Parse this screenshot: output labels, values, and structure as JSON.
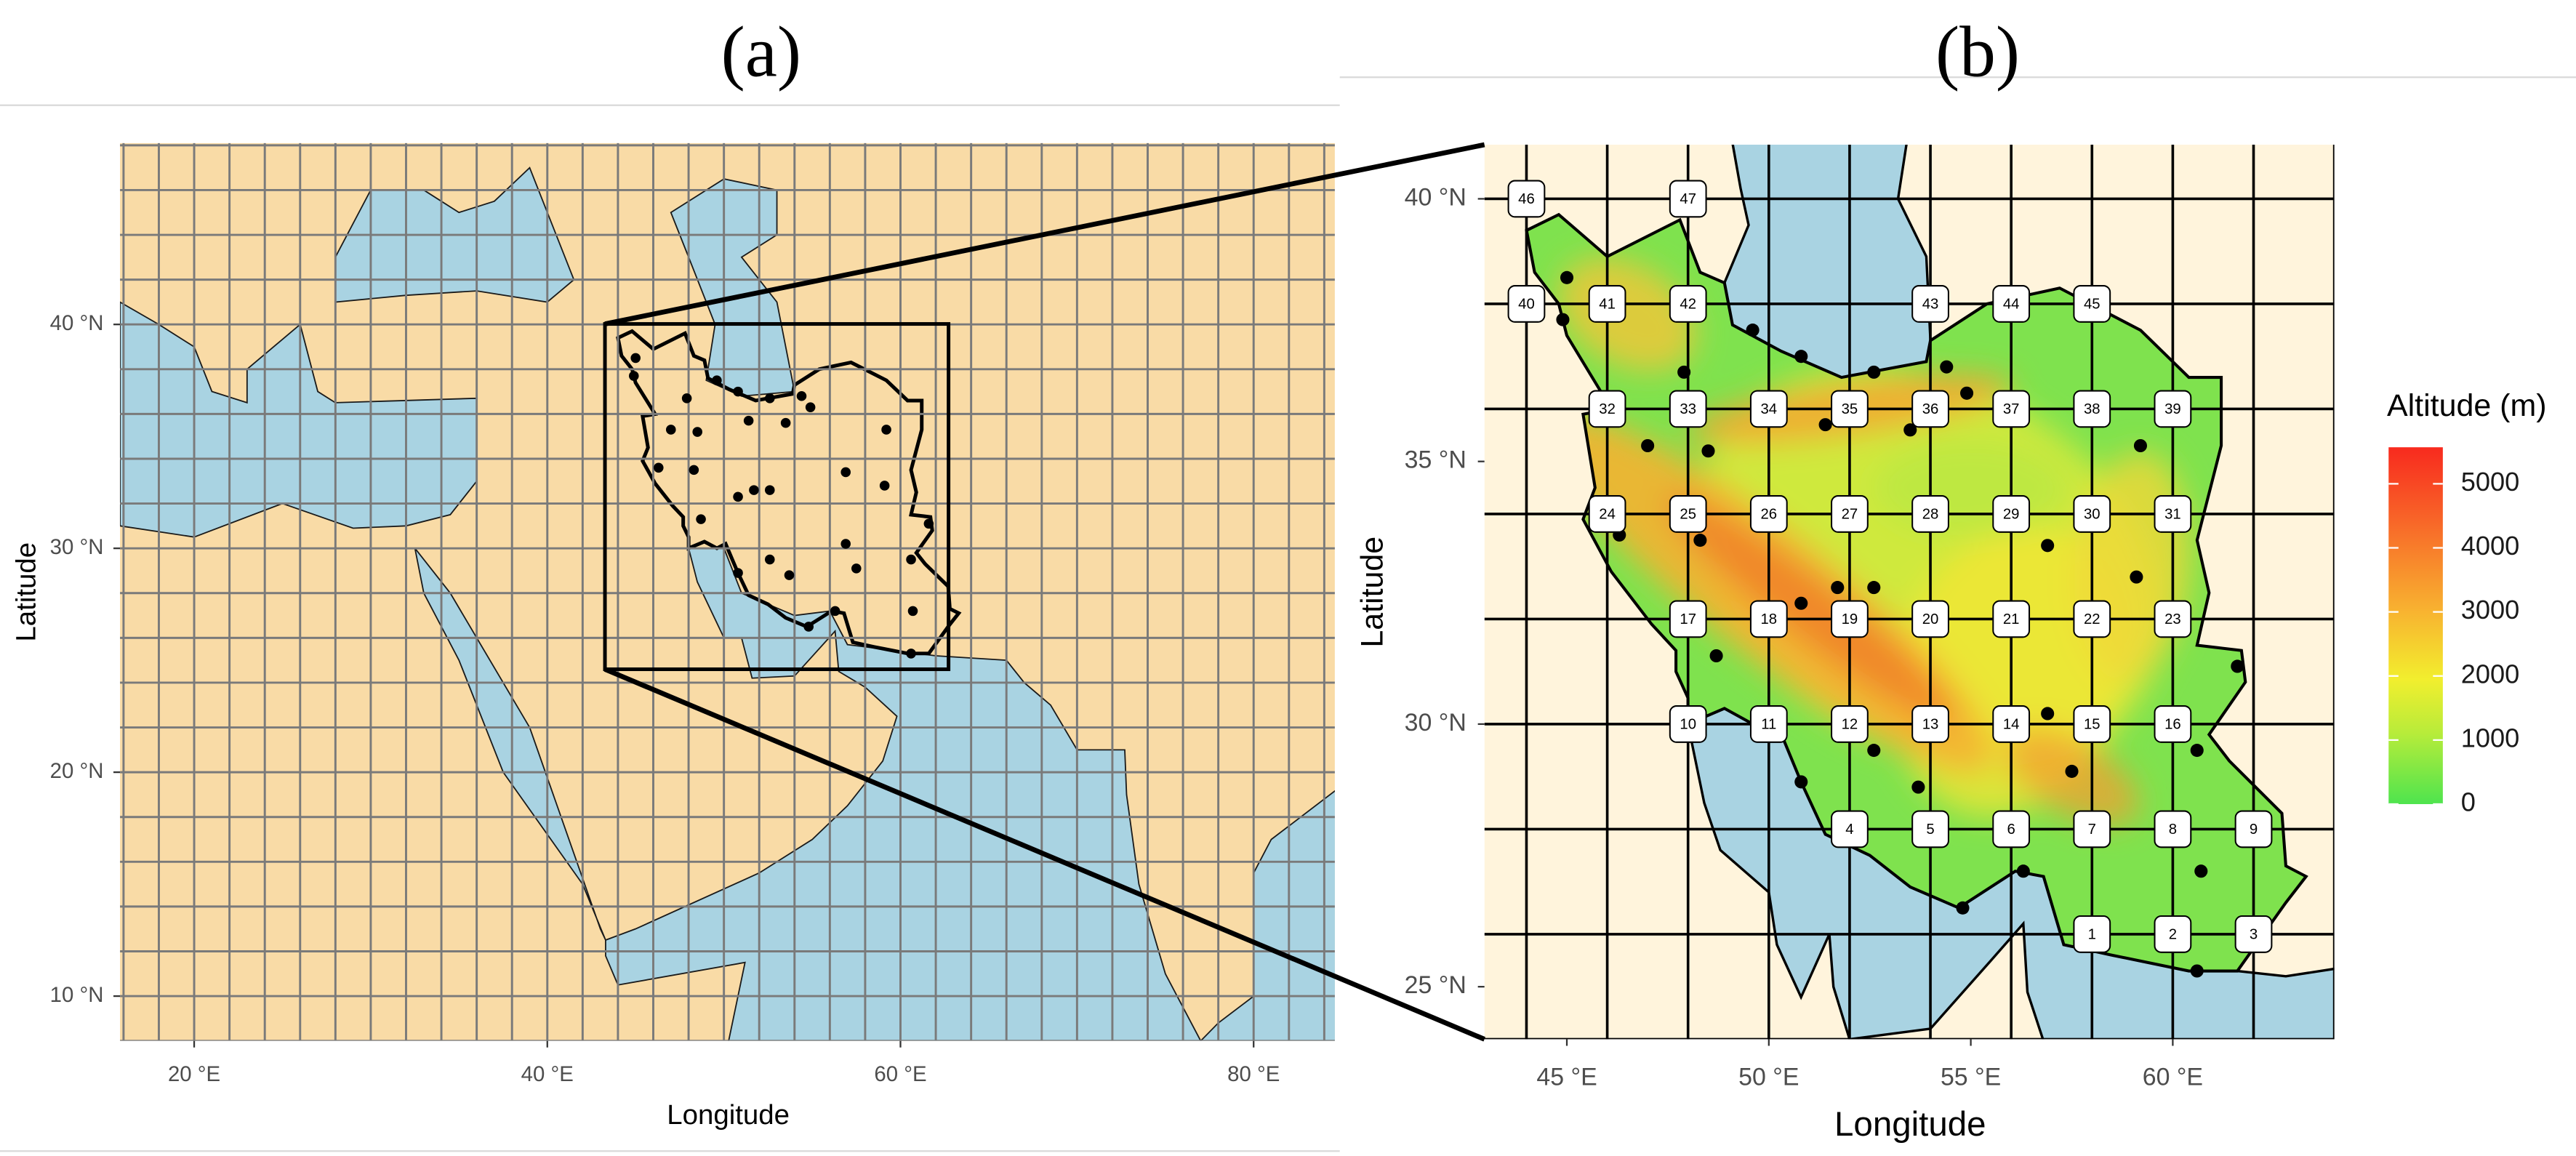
{
  "panels": [
    {
      "label": "(a)",
      "x_label": "Longitude",
      "y_label": "Latitude",
      "xlim": [
        15.8,
        84.6
      ],
      "ylim": [
        8.0,
        48.1
      ],
      "xticks": [
        {
          "value": 20,
          "label": "20 °E"
        },
        {
          "value": 40,
          "label": "40 °E"
        },
        {
          "value": 60,
          "label": "60 °E"
        },
        {
          "value": 80,
          "label": "80 °E"
        }
      ],
      "yticks": [
        {
          "value": 10,
          "label": "10 °N"
        },
        {
          "value": 20,
          "label": "20 °N"
        },
        {
          "value": 30,
          "label": "30 °N"
        },
        {
          "value": 40,
          "label": "40 °N"
        }
      ]
    },
    {
      "label": "(b)",
      "x_label": "Longitude",
      "y_label": "Latitude",
      "xlim": [
        42.96,
        64.0
      ],
      "ylim": [
        24.0,
        41.03
      ],
      "xticks": [
        {
          "value": 45,
          "label": "45 °E"
        },
        {
          "value": 50,
          "label": "50 °E"
        },
        {
          "value": 55,
          "label": "55 °E"
        },
        {
          "value": 60,
          "label": "60 °E"
        }
      ],
      "yticks": [
        {
          "value": 25,
          "label": "25 °N"
        },
        {
          "value": 30,
          "label": "30 °N"
        },
        {
          "value": 35,
          "label": "35 °N"
        },
        {
          "value": 40,
          "label": "40 °N"
        }
      ],
      "cells": [
        {
          "label": "1",
          "lon": 58,
          "lat": 26
        },
        {
          "label": "2",
          "lon": 60,
          "lat": 26
        },
        {
          "label": "3",
          "lon": 62,
          "lat": 26
        },
        {
          "label": "4",
          "lon": 52,
          "lat": 28
        },
        {
          "label": "5",
          "lon": 54,
          "lat": 28
        },
        {
          "label": "6",
          "lon": 56,
          "lat": 28
        },
        {
          "label": "7",
          "lon": 58,
          "lat": 28
        },
        {
          "label": "8",
          "lon": 60,
          "lat": 28
        },
        {
          "label": "9",
          "lon": 62,
          "lat": 28
        },
        {
          "label": "10",
          "lon": 48,
          "lat": 30
        },
        {
          "label": "11",
          "lon": 50,
          "lat": 30
        },
        {
          "label": "12",
          "lon": 52,
          "lat": 30
        },
        {
          "label": "13",
          "lon": 54,
          "lat": 30
        },
        {
          "label": "14",
          "lon": 56,
          "lat": 30
        },
        {
          "label": "15",
          "lon": 58,
          "lat": 30
        },
        {
          "label": "16",
          "lon": 60,
          "lat": 30
        },
        {
          "label": "17",
          "lon": 48,
          "lat": 32
        },
        {
          "label": "18",
          "lon": 50,
          "lat": 32
        },
        {
          "label": "19",
          "lon": 52,
          "lat": 32
        },
        {
          "label": "20",
          "lon": 54,
          "lat": 32
        },
        {
          "label": "21",
          "lon": 56,
          "lat": 32
        },
        {
          "label": "22",
          "lon": 58,
          "lat": 32
        },
        {
          "label": "23",
          "lon": 60,
          "lat": 32
        },
        {
          "label": "24",
          "lon": 46,
          "lat": 34
        },
        {
          "label": "25",
          "lon": 48,
          "lat": 34
        },
        {
          "label": "26",
          "lon": 50,
          "lat": 34
        },
        {
          "label": "27",
          "lon": 52,
          "lat": 34
        },
        {
          "label": "28",
          "lon": 54,
          "lat": 34
        },
        {
          "label": "29",
          "lon": 56,
          "lat": 34
        },
        {
          "label": "30",
          "lon": 58,
          "lat": 34
        },
        {
          "label": "31",
          "lon": 60,
          "lat": 34
        },
        {
          "label": "32",
          "lon": 46,
          "lat": 36
        },
        {
          "label": "33",
          "lon": 48,
          "lat": 36
        },
        {
          "label": "34",
          "lon": 50,
          "lat": 36
        },
        {
          "label": "35",
          "lon": 52,
          "lat": 36
        },
        {
          "label": "36",
          "lon": 54,
          "lat": 36
        },
        {
          "label": "37",
          "lon": 56,
          "lat": 36
        },
        {
          "label": "38",
          "lon": 58,
          "lat": 36
        },
        {
          "label": "39",
          "lon": 60,
          "lat": 36
        },
        {
          "label": "40",
          "lon": 44,
          "lat": 38
        },
        {
          "label": "41",
          "lon": 46,
          "lat": 38
        },
        {
          "label": "42",
          "lon": 48,
          "lat": 38
        },
        {
          "label": "43",
          "lon": 54,
          "lat": 38
        },
        {
          "label": "44",
          "lon": 56,
          "lat": 38
        },
        {
          "label": "45",
          "lon": 58,
          "lat": 38
        },
        {
          "label": "46",
          "lon": 44,
          "lat": 40
        },
        {
          "label": "47",
          "lon": 48,
          "lat": 40
        }
      ]
    }
  ],
  "legend": {
    "title": "Altitude (m)",
    "limits": [
      0,
      5570
    ],
    "ticks": [
      0,
      1000,
      2000,
      3000,
      4000,
      5000
    ]
  }
}
